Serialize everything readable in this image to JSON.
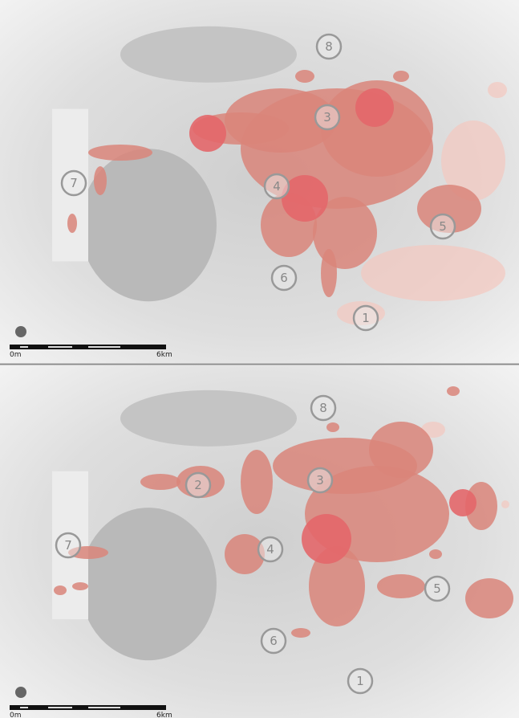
{
  "panels": [
    {
      "labels": [
        "8",
        "3",
        "7",
        "4",
        "5",
        "6",
        "1"
      ],
      "scale": {
        "start": "0m",
        "end": "6km"
      }
    },
    {
      "labels": [
        "8",
        "2",
        "3",
        "7",
        "4",
        "5",
        "6",
        "1"
      ],
      "scale": {
        "start": "0m",
        "end": "6km"
      }
    }
  ]
}
